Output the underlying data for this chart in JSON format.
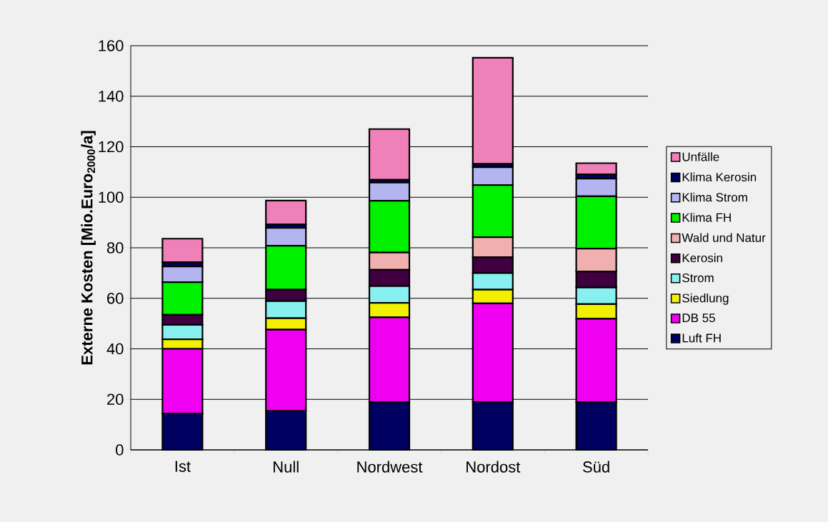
{
  "chart_data": {
    "type": "bar",
    "stacked": true,
    "ylabel": "Externe Kosten [Mio.Euro$_{2000}$/a]",
    "categories": [
      "Ist",
      "Null",
      "Nordwest",
      "Nordost",
      "Süd"
    ],
    "series": [
      {
        "name": "Luft FH",
        "color": "#000060",
        "values": [
          14.4,
          15.4,
          18.9,
          18.9,
          18.9
        ]
      },
      {
        "name": "DB 55",
        "color": "#f000f0",
        "values": [
          25.6,
          32.2,
          33.6,
          39.1,
          33.0
        ]
      },
      {
        "name": "Siedlung",
        "color": "#f0f000",
        "values": [
          3.8,
          4.5,
          5.7,
          5.4,
          5.8
        ]
      },
      {
        "name": "Strom",
        "color": "#88f0f0",
        "values": [
          5.7,
          6.8,
          6.6,
          6.6,
          6.6
        ]
      },
      {
        "name": "Kerosin",
        "color": "#400040",
        "values": [
          4.0,
          4.5,
          6.5,
          6.3,
          6.3
        ]
      },
      {
        "name": "Wald und Natur",
        "color": "#f0b0b0",
        "values": [
          0,
          0,
          6.8,
          7.9,
          9.1
        ]
      },
      {
        "name": "Klima FH",
        "color": "#00f000",
        "values": [
          12.9,
          17.4,
          20.5,
          20.6,
          20.7
        ]
      },
      {
        "name": "Klima Strom",
        "color": "#b4b4f0",
        "values": [
          6.2,
          7.1,
          7.2,
          7.1,
          7.0
        ]
      },
      {
        "name": "Klima Kerosin",
        "color": "#000060",
        "values": [
          1.7,
          1.3,
          1.1,
          1.3,
          1.7
        ]
      },
      {
        "name": "Unfälle",
        "color": "#f080b8",
        "values": [
          9.3,
          9.5,
          20.1,
          42.0,
          4.4
        ]
      }
    ],
    "ylim": [
      0,
      160
    ],
    "yticks": [
      0,
      20,
      40,
      60,
      80,
      100,
      120,
      140,
      160
    ],
    "grid": "y",
    "legend": "right"
  }
}
